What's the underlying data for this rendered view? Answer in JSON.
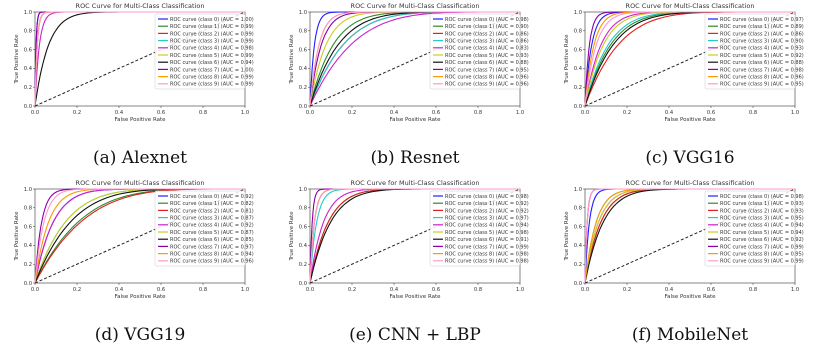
{
  "colors": [
    "#1f1fff",
    "#2e8b2e",
    "#e02020",
    "#22cccc",
    "#cc22cc",
    "#cccc22",
    "#111111",
    "#8800aa",
    "#ff9900",
    "#ff99cc"
  ],
  "chart_data": [
    {
      "type": "line",
      "caption": "(a) Alexnet",
      "title": "ROC Curve for Multi-Class Classification",
      "xlabel": "False Positive Rate",
      "ylabel": "True Positive Rate",
      "xlim": [
        0,
        1
      ],
      "ylim": [
        0,
        1
      ],
      "xticks": [
        "0.0",
        "0.2",
        "0.4",
        "0.6",
        "0.8",
        "1.0"
      ],
      "yticks": [
        "0.0",
        "0.2",
        "0.4",
        "0.6",
        "0.8",
        "1.0"
      ],
      "legend_position": "center-right",
      "series": [
        {
          "name": "ROC curve (class 0) (AUC = 1.00)",
          "auc": 1.0
        },
        {
          "name": "ROC curve (class 1) (AUC = 0.99)",
          "auc": 0.99
        },
        {
          "name": "ROC curve (class 2) (AUC = 0.99)",
          "auc": 0.99
        },
        {
          "name": "ROC curve (class 3) (AUC = 0.99)",
          "auc": 0.99
        },
        {
          "name": "ROC curve (class 4) (AUC = 0.98)",
          "auc": 0.98
        },
        {
          "name": "ROC curve (class 5) (AUC = 0.99)",
          "auc": 0.99
        },
        {
          "name": "ROC curve (class 6) (AUC = 0.94)",
          "auc": 0.94
        },
        {
          "name": "ROC curve (class 7) (AUC = 1.00)",
          "auc": 1.0
        },
        {
          "name": "ROC curve (class 8) (AUC = 0.99)",
          "auc": 0.99
        },
        {
          "name": "ROC curve (class 9) (AUC = 0.99)",
          "auc": 0.99
        }
      ]
    },
    {
      "type": "line",
      "caption": "(b) Resnet",
      "title": "ROC Curve for Multi-Class Classification",
      "xlabel": "False Positive Rate",
      "ylabel": "True Positive Rate",
      "xlim": [
        0,
        1
      ],
      "ylim": [
        0,
        1
      ],
      "xticks": [
        "0.0",
        "0.2",
        "0.4",
        "0.6",
        "0.8",
        "1.0"
      ],
      "yticks": [
        "0.0",
        "0.2",
        "0.4",
        "0.6",
        "0.8",
        "1.0"
      ],
      "legend_position": "center-right",
      "series": [
        {
          "name": "ROC curve (class 0) (AUC = 0.98)",
          "auc": 0.98
        },
        {
          "name": "ROC curve (class 1) (AUC = 0.90)",
          "auc": 0.9
        },
        {
          "name": "ROC curve (class 2) (AUC = 0.86)",
          "auc": 0.86
        },
        {
          "name": "ROC curve (class 3) (AUC = 0.86)",
          "auc": 0.86
        },
        {
          "name": "ROC curve (class 4) (AUC = 0.83)",
          "auc": 0.83
        },
        {
          "name": "ROC curve (class 5) (AUC = 0.93)",
          "auc": 0.93
        },
        {
          "name": "ROC curve (class 6) (AUC = 0.88)",
          "auc": 0.88
        },
        {
          "name": "ROC curve (class 7) (AUC = 0.95)",
          "auc": 0.95
        },
        {
          "name": "ROC curve (class 8) (AUC = 0.96)",
          "auc": 0.96
        },
        {
          "name": "ROC curve (class 9) (AUC = 0.96)",
          "auc": 0.96
        }
      ]
    },
    {
      "type": "line",
      "caption": "(c) VGG16",
      "title": "ROC Curve for Multi-Class Classification",
      "xlabel": "False Positive Rate",
      "ylabel": "True Positive Rate",
      "xlim": [
        0,
        1
      ],
      "ylim": [
        0,
        1
      ],
      "xticks": [
        "0.0",
        "0.2",
        "0.4",
        "0.6",
        "0.8",
        "1.0"
      ],
      "yticks": [
        "0.0",
        "0.2",
        "0.4",
        "0.6",
        "0.8",
        "1.0"
      ],
      "legend_position": "center-right",
      "series": [
        {
          "name": "ROC curve (class 0) (AUC = 0.97)",
          "auc": 0.97
        },
        {
          "name": "ROC curve (class 1) (AUC = 0.89)",
          "auc": 0.89
        },
        {
          "name": "ROC curve (class 2) (AUC = 0.86)",
          "auc": 0.86
        },
        {
          "name": "ROC curve (class 3) (AUC = 0.90)",
          "auc": 0.9
        },
        {
          "name": "ROC curve (class 4) (AUC = 0.93)",
          "auc": 0.93
        },
        {
          "name": "ROC curve (class 5) (AUC = 0.92)",
          "auc": 0.92
        },
        {
          "name": "ROC curve (class 6) (AUC = 0.88)",
          "auc": 0.88
        },
        {
          "name": "ROC curve (class 7) (AUC = 0.98)",
          "auc": 0.98
        },
        {
          "name": "ROC curve (class 8) (AUC = 0.96)",
          "auc": 0.96
        },
        {
          "name": "ROC curve (class 9) (AUC = 0.95)",
          "auc": 0.95
        }
      ]
    },
    {
      "type": "line",
      "caption": "(d) VGG19",
      "title": "ROC Curve for Multi-Class Classification",
      "xlabel": "False Positive Rate",
      "ylabel": "True Positive Rate",
      "xlim": [
        0,
        1
      ],
      "ylim": [
        0,
        1
      ],
      "xticks": [
        "0.0",
        "0.2",
        "0.4",
        "0.6",
        "0.8",
        "1.0"
      ],
      "yticks": [
        "0.0",
        "0.2",
        "0.4",
        "0.6",
        "0.8",
        "1.0"
      ],
      "legend_position": "center-right",
      "series": [
        {
          "name": "ROC curve (class 0) (AUC = 0.92)",
          "auc": 0.92
        },
        {
          "name": "ROC curve (class 1) (AUC = 0.82)",
          "auc": 0.82
        },
        {
          "name": "ROC curve (class 2) (AUC = 0.81)",
          "auc": 0.81
        },
        {
          "name": "ROC curve (class 3) (AUC = 0.87)",
          "auc": 0.87
        },
        {
          "name": "ROC curve (class 4) (AUC = 0.92)",
          "auc": 0.92
        },
        {
          "name": "ROC curve (class 5) (AUC = 0.87)",
          "auc": 0.87
        },
        {
          "name": "ROC curve (class 6) (AUC = 0.85)",
          "auc": 0.85
        },
        {
          "name": "ROC curve (class 7) (AUC = 0.97)",
          "auc": 0.97
        },
        {
          "name": "ROC curve (class 8) (AUC = 0.94)",
          "auc": 0.94
        },
        {
          "name": "ROC curve (class 9) (AUC = 0.96)",
          "auc": 0.96
        }
      ]
    },
    {
      "type": "line",
      "caption": "(e) CNN + LBP",
      "title": "ROC Curve for Multi-Class Classification",
      "xlabel": "False Positive Rate",
      "ylabel": "True Positive Rate",
      "xlim": [
        0,
        1
      ],
      "ylim": [
        0,
        1
      ],
      "xticks": [
        "0.0",
        "0.2",
        "0.4",
        "0.6",
        "0.8",
        "1.0"
      ],
      "yticks": [
        "0.0",
        "0.2",
        "0.4",
        "0.6",
        "0.8",
        "1.0"
      ],
      "legend_position": "center-right",
      "series": [
        {
          "name": "ROC curve (class 0) (AUC = 0.98)",
          "auc": 0.98
        },
        {
          "name": "ROC curve (class 1) (AUC = 0.92)",
          "auc": 0.92
        },
        {
          "name": "ROC curve (class 2) (AUC = 0.92)",
          "auc": 0.92
        },
        {
          "name": "ROC curve (class 3) (AUC = 0.97)",
          "auc": 0.97
        },
        {
          "name": "ROC curve (class 4) (AUC = 0.94)",
          "auc": 0.94
        },
        {
          "name": "ROC curve (class 5) (AUC = 0.98)",
          "auc": 0.98
        },
        {
          "name": "ROC curve (class 6) (AUC = 0.91)",
          "auc": 0.91
        },
        {
          "name": "ROC curve (class 7) (AUC = 0.99)",
          "auc": 0.99
        },
        {
          "name": "ROC curve (class 8) (AUC = 0.98)",
          "auc": 0.98
        },
        {
          "name": "ROC curve (class 9) (AUC = 0.98)",
          "auc": 0.98
        }
      ]
    },
    {
      "type": "line",
      "caption": "(f) MobileNet",
      "title": "ROC Curve for Multi-Class Classification",
      "xlabel": "False Positive Rate",
      "ylabel": "True Positive Rate",
      "xlim": [
        0,
        1
      ],
      "ylim": [
        0,
        1
      ],
      "xticks": [
        "0.0",
        "0.2",
        "0.4",
        "0.6",
        "0.8",
        "1.0"
      ],
      "yticks": [
        "0.0",
        "0.2",
        "0.4",
        "0.6",
        "0.8",
        "1.0"
      ],
      "legend_position": "center-right",
      "series": [
        {
          "name": "ROC curve (class 0) (AUC = 0.98)",
          "auc": 0.98
        },
        {
          "name": "ROC curve (class 1) (AUC = 0.93)",
          "auc": 0.93
        },
        {
          "name": "ROC curve (class 2) (AUC = 0.93)",
          "auc": 0.93
        },
        {
          "name": "ROC curve (class 3) (AUC = 0.95)",
          "auc": 0.95
        },
        {
          "name": "ROC curve (class 4) (AUC = 0.94)",
          "auc": 0.94
        },
        {
          "name": "ROC curve (class 5) (AUC = 0.94)",
          "auc": 0.94
        },
        {
          "name": "ROC curve (class 6) (AUC = 0.92)",
          "auc": 0.92
        },
        {
          "name": "ROC curve (class 7) (AUC = 0.99)",
          "auc": 0.99
        },
        {
          "name": "ROC curve (class 8) (AUC = 0.95)",
          "auc": 0.95
        },
        {
          "name": "ROC curve (class 9) (AUC = 0.99)",
          "auc": 0.99
        }
      ]
    }
  ]
}
